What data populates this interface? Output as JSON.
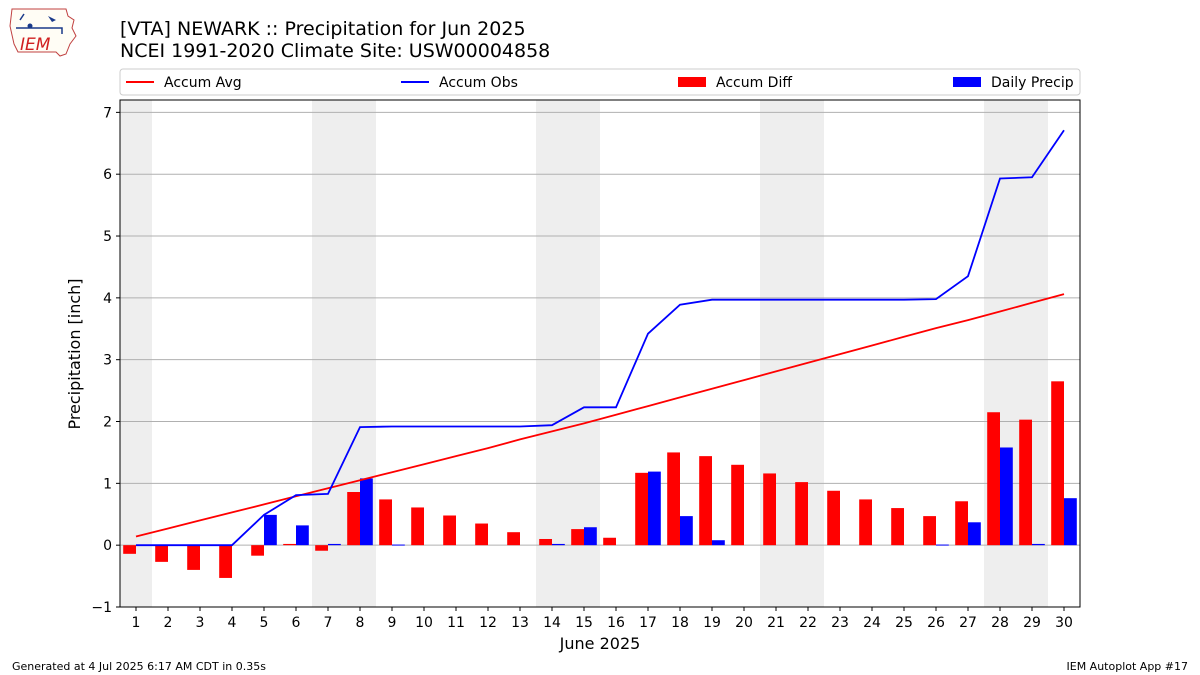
{
  "header": {
    "title_line1": "[VTA] NEWARK :: Precipitation for Jun 2025",
    "title_line2": "NCEI 1991-2020 Climate Site: USW00004858",
    "logo_text": "IEM"
  },
  "footer": {
    "generated": "Generated at 4 Jul 2025 6:17 AM CDT in 0.35s",
    "app": "IEM Autoplot App #17"
  },
  "colors": {
    "accum_avg": "#ff0000",
    "accum_obs": "#0000ff",
    "accum_diff": "#ff0000",
    "daily_precip": "#0000ff",
    "weekend_shade": "#eeeeee",
    "grid": "#b0b0b0"
  },
  "chart_data": {
    "type": "bar",
    "xlabel": "June 2025",
    "ylabel": "Precipitation [inch]",
    "ylim": [
      -1.0,
      7.2
    ],
    "yticks": [
      -1,
      0,
      1,
      2,
      3,
      4,
      5,
      6,
      7
    ],
    "grid": "horizontal",
    "legend_position": "top",
    "weekend_days": [
      1,
      7,
      8,
      14,
      15,
      21,
      22,
      28,
      29
    ],
    "categories": [
      "1",
      "2",
      "3",
      "4",
      "5",
      "6",
      "7",
      "8",
      "9",
      "10",
      "11",
      "12",
      "13",
      "14",
      "15",
      "16",
      "17",
      "18",
      "19",
      "20",
      "21",
      "22",
      "23",
      "24",
      "25",
      "26",
      "27",
      "28",
      "29",
      "30"
    ],
    "series": [
      {
        "name": "Accum Avg",
        "kind": "line",
        "values": [
          0.14,
          0.27,
          0.4,
          0.53,
          0.66,
          0.79,
          0.92,
          1.05,
          1.18,
          1.31,
          1.44,
          1.57,
          1.71,
          1.84,
          1.97,
          2.11,
          2.25,
          2.39,
          2.53,
          2.67,
          2.81,
          2.95,
          3.09,
          3.23,
          3.37,
          3.51,
          3.64,
          3.78,
          3.92,
          4.06
        ]
      },
      {
        "name": "Accum Obs",
        "kind": "line",
        "values": [
          0.0,
          0.0,
          0.0,
          0.0,
          0.49,
          0.81,
          0.83,
          1.91,
          1.92,
          1.92,
          1.92,
          1.92,
          1.92,
          1.94,
          2.23,
          2.23,
          3.42,
          3.89,
          3.97,
          3.97,
          3.97,
          3.97,
          3.97,
          3.97,
          3.97,
          3.98,
          4.35,
          5.93,
          5.95,
          6.71
        ]
      },
      {
        "name": "Accum Diff",
        "kind": "bar",
        "values": [
          -0.14,
          -0.27,
          -0.4,
          -0.53,
          -0.17,
          0.02,
          -0.09,
          0.86,
          0.74,
          0.61,
          0.48,
          0.35,
          0.21,
          0.1,
          0.26,
          0.12,
          1.17,
          1.5,
          1.44,
          1.3,
          1.16,
          1.02,
          0.88,
          0.74,
          0.6,
          0.47,
          0.71,
          2.15,
          2.03,
          2.65
        ]
      },
      {
        "name": "Daily Precip",
        "kind": "bar",
        "values": [
          0.0,
          0.0,
          0.0,
          0.0,
          0.49,
          0.32,
          0.02,
          1.08,
          0.01,
          0.0,
          0.0,
          0.0,
          0.0,
          0.02,
          0.29,
          0.0,
          1.19,
          0.47,
          0.08,
          0.0,
          0.0,
          0.0,
          0.0,
          0.0,
          0.0,
          0.01,
          0.37,
          1.58,
          0.02,
          0.76
        ]
      }
    ]
  }
}
